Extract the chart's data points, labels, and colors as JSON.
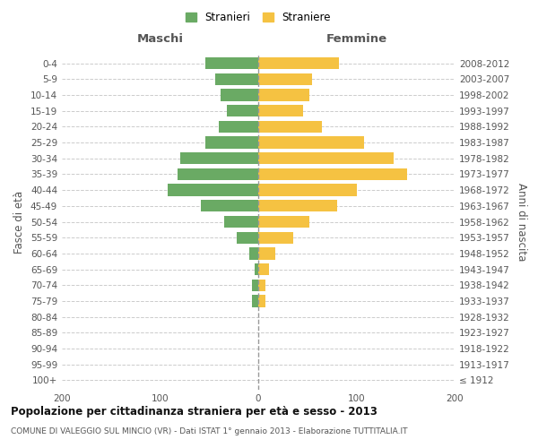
{
  "age_groups": [
    "100+",
    "95-99",
    "90-94",
    "85-89",
    "80-84",
    "75-79",
    "70-74",
    "65-69",
    "60-64",
    "55-59",
    "50-54",
    "45-49",
    "40-44",
    "35-39",
    "30-34",
    "25-29",
    "20-24",
    "15-19",
    "10-14",
    "5-9",
    "0-4"
  ],
  "birth_years": [
    "≤ 1912",
    "1913-1917",
    "1918-1922",
    "1923-1927",
    "1928-1932",
    "1933-1937",
    "1938-1942",
    "1943-1947",
    "1948-1952",
    "1953-1957",
    "1958-1962",
    "1963-1967",
    "1968-1972",
    "1973-1977",
    "1978-1982",
    "1983-1987",
    "1988-1992",
    "1993-1997",
    "1998-2002",
    "2003-2007",
    "2008-2012"
  ],
  "males": [
    0,
    0,
    0,
    0,
    0,
    6,
    6,
    4,
    9,
    22,
    35,
    58,
    92,
    82,
    79,
    54,
    40,
    32,
    38,
    44,
    54
  ],
  "females": [
    0,
    0,
    0,
    0,
    0,
    7,
    7,
    11,
    17,
    36,
    52,
    80,
    100,
    152,
    138,
    108,
    65,
    46,
    52,
    55,
    82
  ],
  "male_color": "#6aaa64",
  "female_color": "#f5c242",
  "grid_color": "#cccccc",
  "background_color": "#ffffff",
  "title": "Popolazione per cittadinanza straniera per età e sesso - 2013",
  "subtitle": "COMUNE DI VALEGGIO SUL MINCIO (VR) - Dati ISTAT 1° gennaio 2013 - Elaborazione TUTTITALIA.IT",
  "xlabel_left": "Maschi",
  "xlabel_right": "Femmine",
  "ylabel_left": "Fasce di età",
  "ylabel_right": "Anni di nascita",
  "legend_male": "Stranieri",
  "legend_female": "Straniere",
  "xlim": 200,
  "bar_height": 0.75,
  "figsize": [
    6.0,
    5.0
  ],
  "dpi": 100
}
